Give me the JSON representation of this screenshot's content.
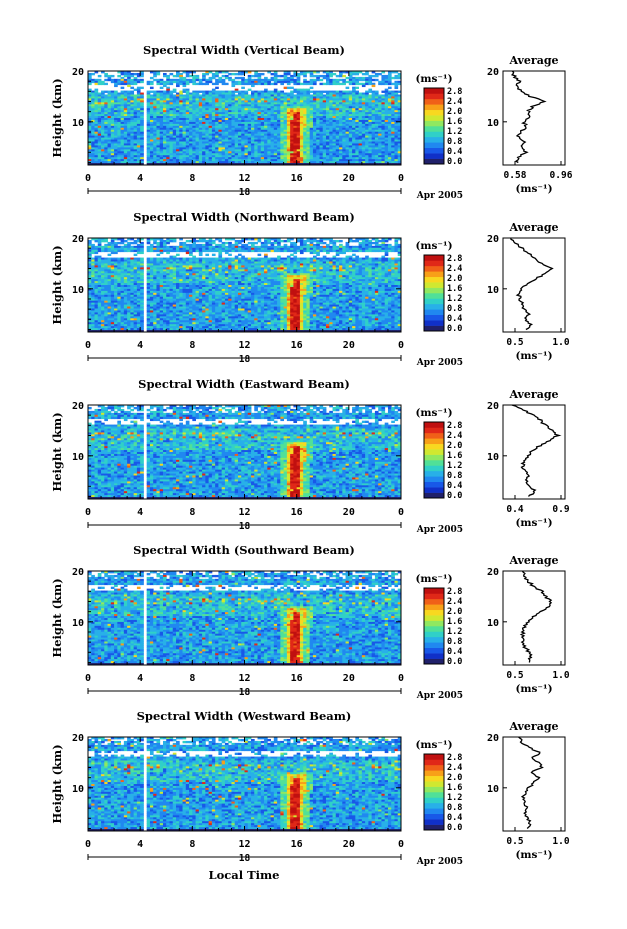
{
  "colors": {
    "scale": [
      "#20206a",
      "#1030c8",
      "#1858e8",
      "#2088f0",
      "#28b0e8",
      "#30d0c8",
      "#50e098",
      "#90e860",
      "#d0e830",
      "#f8d820",
      "#f8a018",
      "#f06018",
      "#e02818",
      "#c01010"
    ]
  },
  "shared": {
    "x_ticks": [
      "0",
      "4",
      "8",
      "12",
      "16",
      "20",
      "0"
    ],
    "date_tick": "18",
    "date_label": "Apr 2005",
    "y_label": "Height (km)",
    "y_ticks": [
      "20",
      "10"
    ],
    "unit_label": "(ms⁻¹)",
    "cbar_ticks": [
      "2.8",
      "2.4",
      "2.0",
      "1.6",
      "1.2",
      "0.8",
      "0.4",
      "0.0"
    ],
    "avg_title": "Average",
    "avg_unit": "(ms⁻¹)",
    "xaxis_title": "Local Time"
  },
  "chart_data": [
    {
      "type": "heatmap",
      "title": "Spectral Width (Vertical Beam)",
      "xlabel": "Local Time",
      "ylabel": "Height (km)",
      "xlim": [
        0,
        24
      ],
      "ylim": [
        1.5,
        20
      ],
      "clim": [
        0,
        3.0
      ],
      "avg": {
        "title": "Average",
        "xlabel": "(ms⁻¹)",
        "xticks": [
          "0.58",
          "0.96"
        ],
        "xlim": [
          0.5,
          1.04
        ],
        "profile": [
          [
            2,
            0.62
          ],
          [
            3,
            0.64
          ],
          [
            4,
            0.7
          ],
          [
            5,
            0.66
          ],
          [
            6,
            0.69
          ],
          [
            7,
            0.63
          ],
          [
            8,
            0.66
          ],
          [
            9,
            0.7
          ],
          [
            10,
            0.68
          ],
          [
            11,
            0.74
          ],
          [
            12,
            0.72
          ],
          [
            13,
            0.76
          ],
          [
            14,
            0.85
          ],
          [
            15,
            0.74
          ],
          [
            16,
            0.66
          ],
          [
            17,
            0.62
          ],
          [
            18,
            0.64
          ],
          [
            19,
            0.6
          ],
          [
            20,
            0.58
          ]
        ]
      }
    },
    {
      "type": "heatmap",
      "title": "Spectral Width (Northward Beam)",
      "xlabel": "Local Time",
      "ylabel": "Height (km)",
      "xlim": [
        0,
        24
      ],
      "ylim": [
        1.5,
        20
      ],
      "clim": [
        0,
        3.0
      ],
      "avg": {
        "title": "Average",
        "xlabel": "(ms⁻¹)",
        "xticks": [
          "0.5",
          "1.0"
        ],
        "xlim": [
          0.3,
          1.1
        ],
        "profile": [
          [
            2,
            0.62
          ],
          [
            3,
            0.66
          ],
          [
            4,
            0.6
          ],
          [
            5,
            0.63
          ],
          [
            6,
            0.58
          ],
          [
            7,
            0.55
          ],
          [
            8,
            0.52
          ],
          [
            9,
            0.5
          ],
          [
            10,
            0.55
          ],
          [
            11,
            0.62
          ],
          [
            12,
            0.72
          ],
          [
            13,
            0.85
          ],
          [
            14,
            0.95
          ],
          [
            15,
            0.8
          ],
          [
            16,
            0.7
          ],
          [
            17,
            0.62
          ],
          [
            18,
            0.55
          ],
          [
            19,
            0.45
          ],
          [
            20,
            0.4
          ]
        ]
      }
    },
    {
      "type": "heatmap",
      "title": "Spectral Width (Eastward Beam)",
      "xlabel": "Local Time",
      "ylabel": "Height (km)",
      "xlim": [
        0,
        24
      ],
      "ylim": [
        1.5,
        20
      ],
      "clim": [
        0,
        3.0
      ],
      "avg": {
        "title": "Average",
        "xlabel": "(ms⁻¹)",
        "xticks": [
          "0.4",
          "0.9"
        ],
        "xlim": [
          0.3,
          1.0
        ],
        "profile": [
          [
            2,
            0.6
          ],
          [
            3,
            0.66
          ],
          [
            4,
            0.62
          ],
          [
            5,
            0.56
          ],
          [
            6,
            0.58
          ],
          [
            7,
            0.55
          ],
          [
            8,
            0.52
          ],
          [
            9,
            0.54
          ],
          [
            10,
            0.58
          ],
          [
            11,
            0.64
          ],
          [
            12,
            0.72
          ],
          [
            13,
            0.82
          ],
          [
            14,
            0.92
          ],
          [
            15,
            0.85
          ],
          [
            16,
            0.78
          ],
          [
            17,
            0.72
          ],
          [
            18,
            0.66
          ],
          [
            19,
            0.52
          ],
          [
            20,
            0.4
          ]
        ]
      }
    },
    {
      "type": "heatmap",
      "title": "Spectral Width (Southward Beam)",
      "xlabel": "Local Time",
      "ylabel": "Height (km)",
      "xlim": [
        0,
        24
      ],
      "ylim": [
        1.5,
        20
      ],
      "clim": [
        0,
        3.0
      ],
      "avg": {
        "title": "Average",
        "xlabel": "(ms⁻¹)",
        "xticks": [
          "0.5",
          "1.0"
        ],
        "xlim": [
          0.3,
          1.1
        ],
        "profile": [
          [
            2,
            0.62
          ],
          [
            3,
            0.66
          ],
          [
            4,
            0.64
          ],
          [
            5,
            0.58
          ],
          [
            6,
            0.55
          ],
          [
            7,
            0.55
          ],
          [
            8,
            0.56
          ],
          [
            9,
            0.58
          ],
          [
            10,
            0.62
          ],
          [
            11,
            0.7
          ],
          [
            12,
            0.8
          ],
          [
            13,
            0.88
          ],
          [
            14,
            0.92
          ],
          [
            15,
            0.85
          ],
          [
            16,
            0.8
          ],
          [
            17,
            0.7
          ],
          [
            18,
            0.62
          ],
          [
            19,
            0.58
          ],
          [
            20,
            0.55
          ]
        ]
      }
    },
    {
      "type": "heatmap",
      "title": "Spectral Width (Westward Beam)",
      "xlabel": "Local Time",
      "ylabel": "Height (km)",
      "xlim": [
        0,
        24
      ],
      "ylim": [
        1.5,
        20
      ],
      "clim": [
        0,
        3.0
      ],
      "avg": {
        "title": "Average",
        "xlabel": "(ms⁻¹)",
        "xticks": [
          "0.5",
          "1.0"
        ],
        "xlim": [
          0.3,
          1.1
        ],
        "profile": [
          [
            2,
            0.6
          ],
          [
            3,
            0.65
          ],
          [
            4,
            0.62
          ],
          [
            5,
            0.58
          ],
          [
            6,
            0.6
          ],
          [
            7,
            0.58
          ],
          [
            8,
            0.56
          ],
          [
            9,
            0.58
          ],
          [
            10,
            0.62
          ],
          [
            11,
            0.7
          ],
          [
            12,
            0.78
          ],
          [
            13,
            0.66
          ],
          [
            14,
            0.82
          ],
          [
            15,
            0.75
          ],
          [
            16,
            0.68
          ],
          [
            17,
            0.78
          ],
          [
            18,
            0.62
          ],
          [
            19,
            0.55
          ],
          [
            20,
            0.5
          ]
        ]
      }
    }
  ]
}
